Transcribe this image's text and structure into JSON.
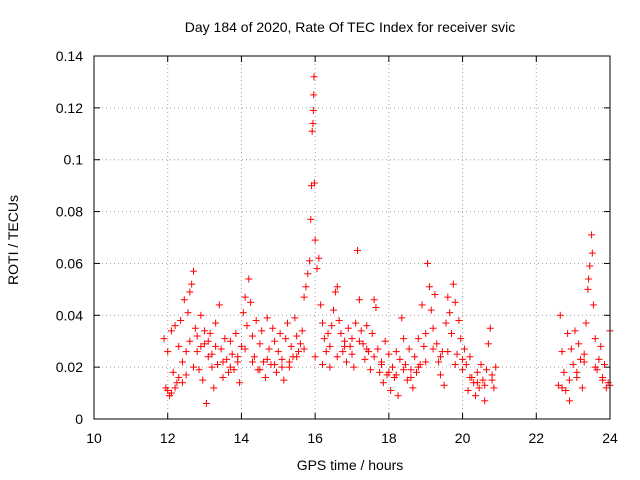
{
  "chart_data": {
    "type": "scatter",
    "title": "Day 184 of 2020, Rate Of TEC Index for receiver svic",
    "xlabel": "GPS time / hours",
    "ylabel": "ROTI / TECUs",
    "xlim": [
      10,
      24
    ],
    "ylim": [
      0,
      0.14
    ],
    "xticks": [
      10,
      12,
      14,
      16,
      18,
      20,
      22,
      24
    ],
    "yticks": [
      0,
      0.02,
      0.04,
      0.06,
      0.08,
      0.1,
      0.12,
      0.14
    ],
    "xtick_labels": [
      "10",
      "12",
      "14",
      "16",
      "18",
      "20",
      "22",
      "24"
    ],
    "ytick_labels": [
      "0",
      "0.02",
      "0.04",
      "0.06",
      "0.08",
      "0.1",
      "0.12",
      "0.14"
    ],
    "grid": true,
    "marker": "+",
    "color": "#ff0000",
    "series": [
      {
        "name": "ROTI",
        "points": [
          [
            11.9,
            0.031
          ],
          [
            11.95,
            0.012
          ],
          [
            12.0,
            0.026
          ],
          [
            12.05,
            0.009
          ],
          [
            12.1,
            0.034
          ],
          [
            12.15,
            0.018
          ],
          [
            12.2,
            0.036
          ],
          [
            12.25,
            0.014
          ],
          [
            12.3,
            0.028
          ],
          [
            12.35,
            0.038
          ],
          [
            12.4,
            0.022
          ],
          [
            12.45,
            0.046
          ],
          [
            12.5,
            0.017
          ],
          [
            12.55,
            0.041
          ],
          [
            12.6,
            0.049
          ],
          [
            12.65,
            0.052
          ],
          [
            12.7,
            0.057
          ],
          [
            12.75,
            0.035
          ],
          [
            12.8,
            0.026
          ],
          [
            12.85,
            0.019
          ],
          [
            12.9,
            0.04
          ],
          [
            12.95,
            0.015
          ],
          [
            13.0,
            0.029
          ],
          [
            13.05,
            0.006
          ],
          [
            13.1,
            0.024
          ],
          [
            13.15,
            0.033
          ],
          [
            13.2,
            0.02
          ],
          [
            13.25,
            0.012
          ],
          [
            13.3,
            0.037
          ],
          [
            13.35,
            0.021
          ],
          [
            13.4,
            0.044
          ],
          [
            13.45,
            0.027
          ],
          [
            13.5,
            0.016
          ],
          [
            13.55,
            0.031
          ],
          [
            13.6,
            0.023
          ],
          [
            13.65,
            0.018
          ],
          [
            13.7,
            0.03
          ],
          [
            13.75,
            0.025
          ],
          [
            13.8,
            0.019
          ],
          [
            13.85,
            0.033
          ],
          [
            13.9,
            0.022
          ],
          [
            13.95,
            0.014
          ],
          [
            14.0,
            0.028
          ],
          [
            14.05,
            0.041
          ],
          [
            14.1,
            0.047
          ],
          [
            14.15,
            0.036
          ],
          [
            14.2,
            0.054
          ],
          [
            14.25,
            0.045
          ],
          [
            14.3,
            0.032
          ],
          [
            14.35,
            0.024
          ],
          [
            14.4,
            0.038
          ],
          [
            14.45,
            0.019
          ],
          [
            14.5,
            0.029
          ],
          [
            14.55,
            0.034
          ],
          [
            14.6,
            0.022
          ],
          [
            14.65,
            0.016
          ],
          [
            14.7,
            0.039
          ],
          [
            14.75,
            0.027
          ],
          [
            14.8,
            0.021
          ],
          [
            14.85,
            0.035
          ],
          [
            14.9,
            0.03
          ],
          [
            14.95,
            0.018
          ],
          [
            15.0,
            0.026
          ],
          [
            15.05,
            0.033
          ],
          [
            15.1,
            0.023
          ],
          [
            15.15,
            0.015
          ],
          [
            15.2,
            0.031
          ],
          [
            15.25,
            0.037
          ],
          [
            15.3,
            0.02
          ],
          [
            15.35,
            0.028
          ],
          [
            15.4,
            0.024
          ],
          [
            15.45,
            0.039
          ],
          [
            15.5,
            0.032
          ],
          [
            15.55,
            0.026
          ],
          [
            15.6,
            0.029
          ],
          [
            15.65,
            0.034
          ],
          [
            15.7,
            0.047
          ],
          [
            15.75,
            0.051
          ],
          [
            15.8,
            0.056
          ],
          [
            15.85,
            0.061
          ],
          [
            15.88,
            0.077
          ],
          [
            15.9,
            0.09
          ],
          [
            15.92,
            0.111
          ],
          [
            15.94,
            0.114
          ],
          [
            15.95,
            0.119
          ],
          [
            15.96,
            0.125
          ],
          [
            15.97,
            0.132
          ],
          [
            15.98,
            0.091
          ],
          [
            16.0,
            0.069
          ],
          [
            16.05,
            0.058
          ],
          [
            16.1,
            0.062
          ],
          [
            16.15,
            0.044
          ],
          [
            16.2,
            0.037
          ],
          [
            16.25,
            0.031
          ],
          [
            16.3,
            0.026
          ],
          [
            16.35,
            0.033
          ],
          [
            16.4,
            0.028
          ],
          [
            16.45,
            0.036
          ],
          [
            16.5,
            0.042
          ],
          [
            16.55,
            0.049
          ],
          [
            16.6,
            0.051
          ],
          [
            16.65,
            0.038
          ],
          [
            16.7,
            0.033
          ],
          [
            16.75,
            0.026
          ],
          [
            16.8,
            0.03
          ],
          [
            16.85,
            0.022
          ],
          [
            16.9,
            0.035
          ],
          [
            16.95,
            0.028
          ],
          [
            17.0,
            0.031
          ],
          [
            17.05,
            0.02
          ],
          [
            17.1,
            0.037
          ],
          [
            17.15,
            0.065
          ],
          [
            17.2,
            0.046
          ],
          [
            17.25,
            0.034
          ],
          [
            17.3,
            0.029
          ],
          [
            17.35,
            0.023
          ],
          [
            17.4,
            0.036
          ],
          [
            17.45,
            0.026
          ],
          [
            17.5,
            0.019
          ],
          [
            17.55,
            0.033
          ],
          [
            17.6,
            0.046
          ],
          [
            17.65,
            0.043
          ],
          [
            17.7,
            0.027
          ],
          [
            17.75,
            0.018
          ],
          [
            17.8,
            0.022
          ],
          [
            17.85,
            0.014
          ],
          [
            17.9,
            0.03
          ],
          [
            17.95,
            0.017
          ],
          [
            18.0,
            0.025
          ],
          [
            18.05,
            0.011
          ],
          [
            18.1,
            0.02
          ],
          [
            18.15,
            0.016
          ],
          [
            18.2,
            0.026
          ],
          [
            18.25,
            0.009
          ],
          [
            18.3,
            0.023
          ],
          [
            18.35,
            0.039
          ],
          [
            18.4,
            0.031
          ],
          [
            18.45,
            0.021
          ],
          [
            18.5,
            0.015
          ],
          [
            18.55,
            0.027
          ],
          [
            18.6,
            0.019
          ],
          [
            18.65,
            0.012
          ],
          [
            18.7,
            0.024
          ],
          [
            18.75,
            0.018
          ],
          [
            18.8,
            0.031
          ],
          [
            18.85,
            0.021
          ],
          [
            18.9,
            0.044
          ],
          [
            18.95,
            0.028
          ],
          [
            19.0,
            0.033
          ],
          [
            19.05,
            0.06
          ],
          [
            19.1,
            0.051
          ],
          [
            19.15,
            0.042
          ],
          [
            19.2,
            0.035
          ],
          [
            19.25,
            0.048
          ],
          [
            19.3,
            0.029
          ],
          [
            19.35,
            0.022
          ],
          [
            19.4,
            0.017
          ],
          [
            19.45,
            0.026
          ],
          [
            19.5,
            0.013
          ],
          [
            19.55,
            0.037
          ],
          [
            19.6,
            0.047
          ],
          [
            19.65,
            0.041
          ],
          [
            19.7,
            0.033
          ],
          [
            19.75,
            0.052
          ],
          [
            19.8,
            0.045
          ],
          [
            19.85,
            0.025
          ],
          [
            19.9,
            0.038
          ],
          [
            19.95,
            0.031
          ],
          [
            20.0,
            0.019
          ],
          [
            20.05,
            0.027
          ],
          [
            20.1,
            0.021
          ],
          [
            20.15,
            0.011
          ],
          [
            20.2,
            0.024
          ],
          [
            20.25,
            0.016
          ],
          [
            20.3,
            0.014
          ],
          [
            20.35,
            0.009
          ],
          [
            20.4,
            0.018
          ],
          [
            20.45,
            0.012
          ],
          [
            20.5,
            0.021
          ],
          [
            20.55,
            0.015
          ],
          [
            20.6,
            0.007
          ],
          [
            20.65,
            0.019
          ],
          [
            20.7,
            0.029
          ],
          [
            20.75,
            0.035
          ],
          [
            20.8,
            0.017
          ],
          [
            20.85,
            0.012
          ],
          [
            20.9,
            0.02
          ],
          [
            22.6,
            0.013
          ],
          [
            22.65,
            0.04
          ],
          [
            22.7,
            0.026
          ],
          [
            22.75,
            0.018
          ],
          [
            22.8,
            0.011
          ],
          [
            22.85,
            0.033
          ],
          [
            22.9,
            0.007
          ],
          [
            22.95,
            0.027
          ],
          [
            23.0,
            0.021
          ],
          [
            23.05,
            0.034
          ],
          [
            23.1,
            0.016
          ],
          [
            23.15,
            0.029
          ],
          [
            23.2,
            0.023
          ],
          [
            23.25,
            0.012
          ],
          [
            23.3,
            0.025
          ],
          [
            23.35,
            0.037
          ],
          [
            23.4,
            0.05
          ],
          [
            23.42,
            0.054
          ],
          [
            23.45,
            0.059
          ],
          [
            23.5,
            0.071
          ],
          [
            23.52,
            0.064
          ],
          [
            23.55,
            0.044
          ],
          [
            23.6,
            0.031
          ],
          [
            23.65,
            0.019
          ],
          [
            23.7,
            0.023
          ],
          [
            23.75,
            0.028
          ],
          [
            23.8,
            0.016
          ],
          [
            23.85,
            0.021
          ],
          [
            23.9,
            0.012
          ],
          [
            23.95,
            0.014
          ],
          [
            24.0,
            0.034
          ],
          [
            12.0,
            0.011
          ],
          [
            12.1,
            0.01
          ],
          [
            12.2,
            0.012
          ],
          [
            12.3,
            0.016
          ],
          [
            12.4,
            0.014
          ],
          [
            12.5,
            0.026
          ],
          [
            12.6,
            0.03
          ],
          [
            12.7,
            0.02
          ],
          [
            12.8,
            0.032
          ],
          [
            12.9,
            0.028
          ],
          [
            13.0,
            0.034
          ],
          [
            13.1,
            0.03
          ],
          [
            13.2,
            0.025
          ],
          [
            13.3,
            0.028
          ],
          [
            13.5,
            0.022
          ],
          [
            13.7,
            0.02
          ],
          [
            13.9,
            0.024
          ],
          [
            14.1,
            0.027
          ],
          [
            14.3,
            0.022
          ],
          [
            14.5,
            0.019
          ],
          [
            14.7,
            0.023
          ],
          [
            14.9,
            0.021
          ],
          [
            15.1,
            0.02
          ],
          [
            15.3,
            0.022
          ],
          [
            15.5,
            0.024
          ],
          [
            15.7,
            0.027
          ],
          [
            16.0,
            0.024
          ],
          [
            16.2,
            0.021
          ],
          [
            16.4,
            0.02
          ],
          [
            16.6,
            0.024
          ],
          [
            16.8,
            0.028
          ],
          [
            17.0,
            0.025
          ],
          [
            17.2,
            0.03
          ],
          [
            17.4,
            0.027
          ],
          [
            17.6,
            0.024
          ],
          [
            17.8,
            0.021
          ],
          [
            18.0,
            0.018
          ],
          [
            18.2,
            0.017
          ],
          [
            18.4,
            0.019
          ],
          [
            18.6,
            0.016
          ],
          [
            18.8,
            0.02
          ],
          [
            19.0,
            0.022
          ],
          [
            19.2,
            0.027
          ],
          [
            19.4,
            0.024
          ],
          [
            19.6,
            0.026
          ],
          [
            19.8,
            0.021
          ],
          [
            20.0,
            0.023
          ],
          [
            20.2,
            0.016
          ],
          [
            20.4,
            0.014
          ],
          [
            20.6,
            0.013
          ],
          [
            20.8,
            0.015
          ],
          [
            22.7,
            0.012
          ],
          [
            22.9,
            0.015
          ],
          [
            23.1,
            0.018
          ],
          [
            23.3,
            0.022
          ],
          [
            23.6,
            0.02
          ],
          [
            23.8,
            0.015
          ],
          [
            24.0,
            0.013
          ]
        ]
      }
    ]
  }
}
